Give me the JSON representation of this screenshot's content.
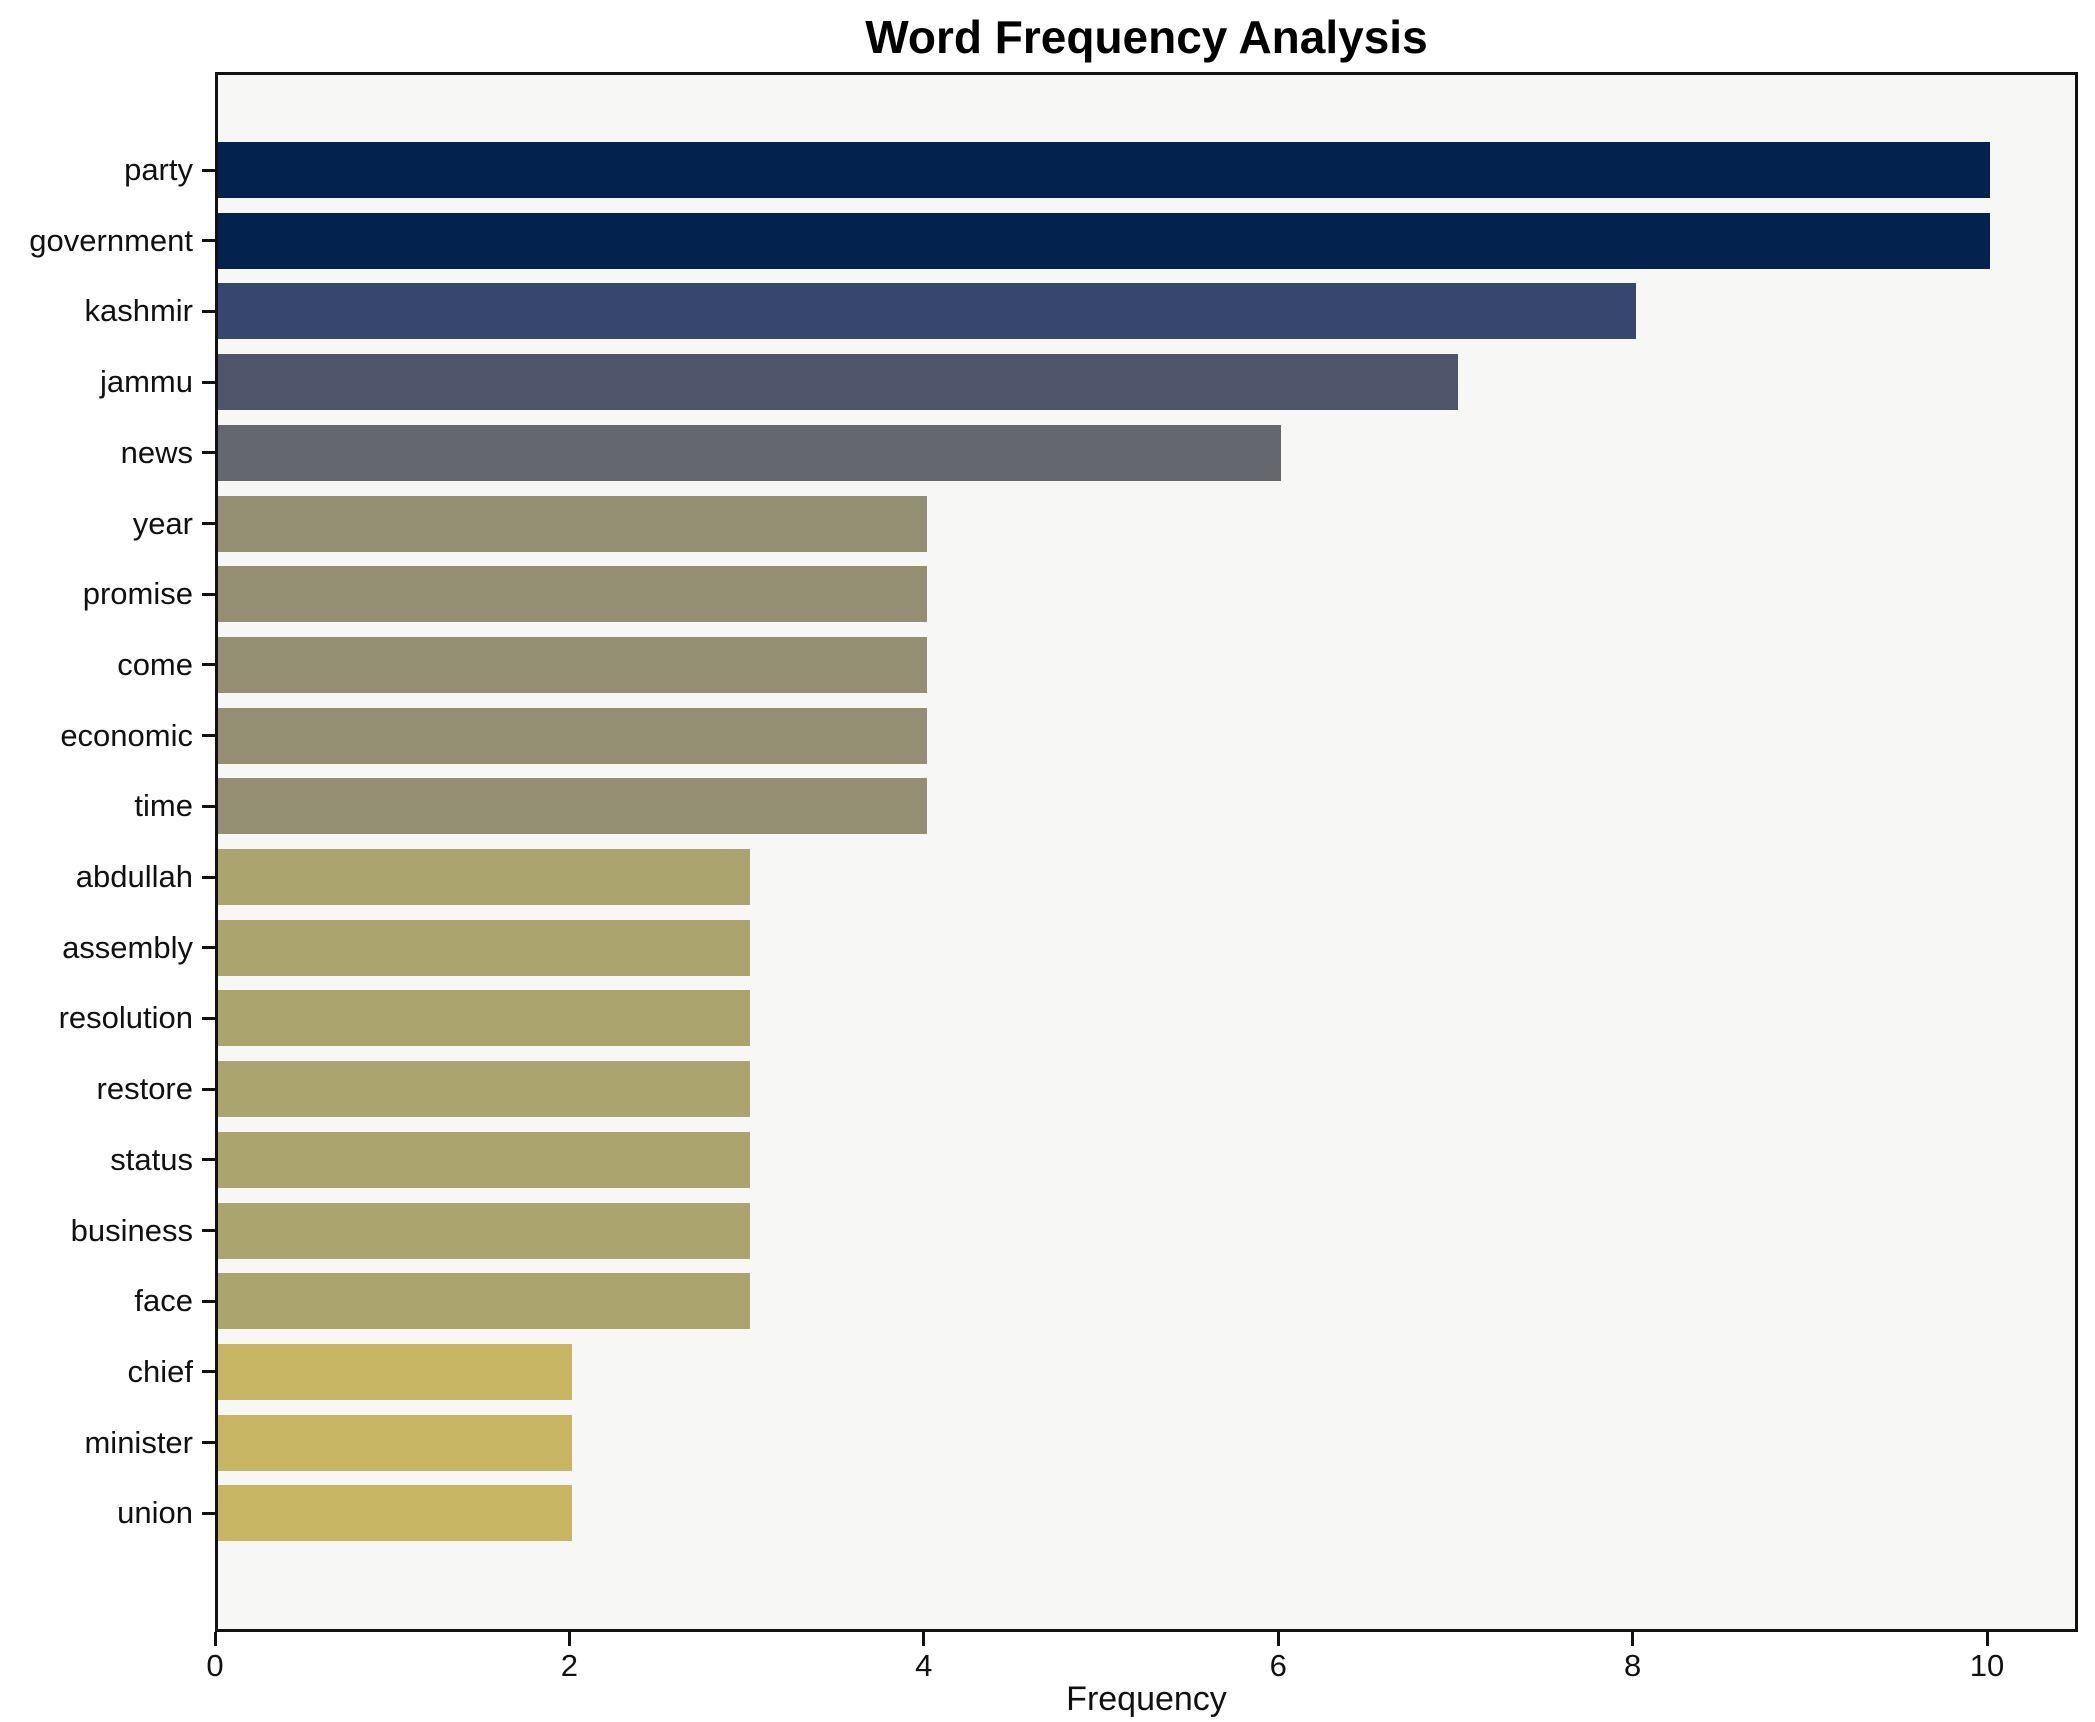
{
  "title": "Word Frequency Analysis",
  "chart_data": {
    "type": "bar",
    "orientation": "horizontal",
    "title": "Word Frequency Analysis",
    "xlabel": "Frequency",
    "ylabel": "",
    "categories": [
      "party",
      "government",
      "kashmir",
      "jammu",
      "news",
      "year",
      "promise",
      "come",
      "economic",
      "time",
      "abdullah",
      "assembly",
      "resolution",
      "restore",
      "status",
      "business",
      "face",
      "chief",
      "minister",
      "union"
    ],
    "values": [
      10,
      10,
      8,
      7,
      6,
      4,
      4,
      4,
      4,
      4,
      3,
      3,
      3,
      3,
      3,
      3,
      3,
      2,
      2,
      2
    ],
    "bar_colors": [
      "#03224d",
      "#03224d",
      "#37466f",
      "#4f566b",
      "#65676e",
      "#948f73",
      "#948f73",
      "#948f73",
      "#948f73",
      "#948f73",
      "#aca46e",
      "#aca46e",
      "#aca46e",
      "#aca46e",
      "#aca46e",
      "#aca46e",
      "#aca46e",
      "#c8b564",
      "#c8b564",
      "#c8b564"
    ],
    "xticks": [
      0,
      2,
      4,
      6,
      8,
      10
    ],
    "xlim": [
      0,
      10.5
    ],
    "grid": false,
    "legend": null,
    "colors": {
      "figure_background": "#ffffff",
      "plot_background": "#f7f7f6",
      "axis": "#111111",
      "text": "#111111"
    }
  }
}
